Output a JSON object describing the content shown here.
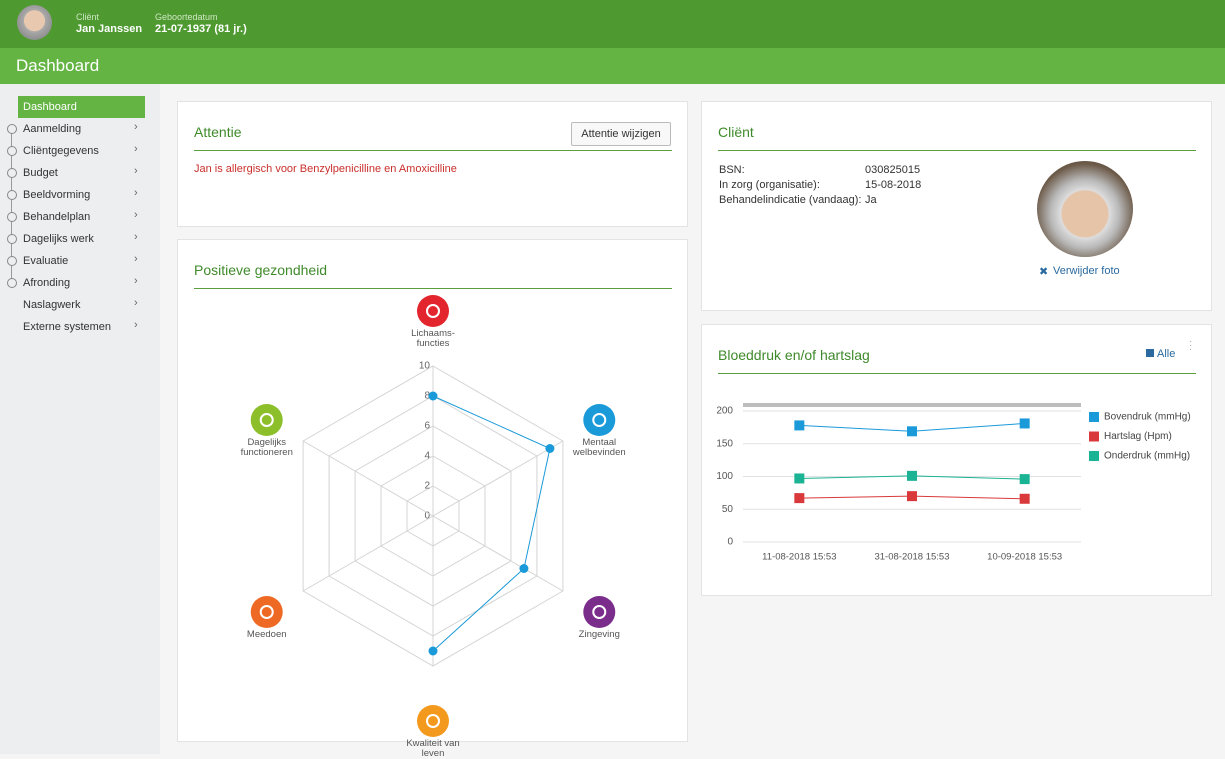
{
  "header": {
    "client_label": "Cliënt",
    "client_name": "Jan Janssen",
    "dob_label": "Geboortedatum",
    "dob": "21-07-1937 (81 jr.)"
  },
  "page_title": "Dashboard",
  "sidebar": {
    "items": [
      "Dashboard",
      "Aanmelding",
      "Cliëntgegevens",
      "Budget",
      "Beeldvorming",
      "Behandelplan",
      "Dagelijks werk",
      "Evaluatie",
      "Afronding",
      "Naslagwerk",
      "Externe systemen"
    ]
  },
  "attention": {
    "title": "Attentie",
    "button": "Attentie wijzigen",
    "text": "Jan is allergisch voor Benzylpenicilline en Amoxicilline"
  },
  "client": {
    "title": "Cliënt",
    "fields": [
      [
        "BSN:",
        "030825015"
      ],
      [
        "In zorg (organisatie):",
        "15-08-2018"
      ],
      [
        "Behandelindicatie (vandaag):",
        "Ja"
      ]
    ],
    "remove_photo": "Verwijder foto"
  },
  "chart_data": [
    {
      "type": "radar",
      "title": "Positieve gezondheid",
      "categories": [
        "Lichaams- functies",
        "Mentaal welbevinden",
        "Zingeving",
        "Kwaliteit van leven",
        "Meedoen",
        "Dagelijks functioneren"
      ],
      "category_colors": [
        "#e3262e",
        "#1a9ad8",
        "#7b2d8b",
        "#f39a1e",
        "#ee6a24",
        "#8cbf2a"
      ],
      "values": [
        8,
        9,
        7,
        9,
        null,
        null
      ],
      "color": "#1a9ad8",
      "ylim": [
        0,
        10
      ],
      "yticks": [
        0,
        2,
        4,
        6,
        8,
        10
      ]
    },
    {
      "type": "line",
      "title": "Bloeddruk en/of hartslag",
      "link": "Alle",
      "categories": [
        "11-08-2018 15:53",
        "31-08-2018 15:53",
        "10-09-2018 15:53"
      ],
      "series": [
        {
          "name": "Bovendruk (mmHg)",
          "color": "#1a9ad8",
          "values": [
            178,
            169,
            181
          ]
        },
        {
          "name": "Hartslag (Hpm)",
          "color": "#d9393b",
          "values": [
            67,
            70,
            66
          ]
        },
        {
          "name": "Onderdruk (mmHg)",
          "color": "#1ab394",
          "values": [
            97,
            101,
            96
          ]
        }
      ],
      "ylim": [
        0,
        200
      ],
      "yticks": [
        0,
        50,
        100,
        150,
        200
      ],
      "grid": true
    }
  ]
}
